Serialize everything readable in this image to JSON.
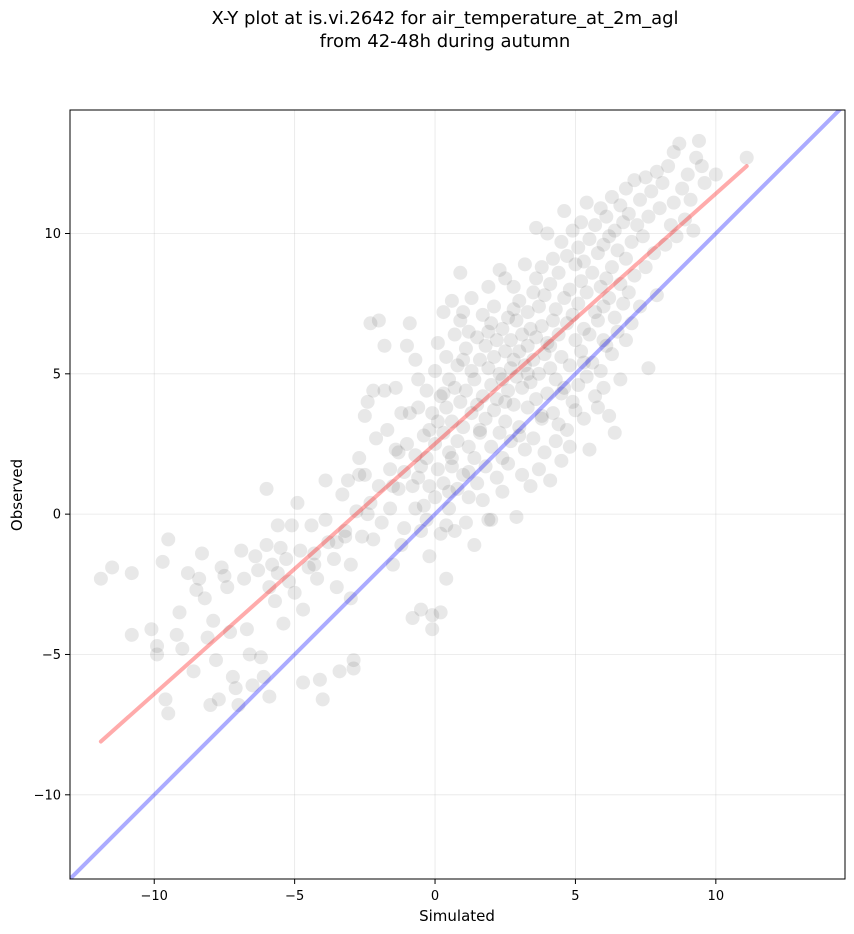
{
  "chart_data": {
    "type": "scatter",
    "title_lines": [
      "X-Y plot at is.vi.2642 for air_temperature_at_2m_agl",
      "from 42-48h during autumn"
    ],
    "xlabel": "Simulated",
    "ylabel": "Observed",
    "xlim": [
      -13.0,
      14.6
    ],
    "ylim": [
      -13.0,
      14.4
    ],
    "xticks": [
      -10,
      -5,
      0,
      5,
      10
    ],
    "yticks": [
      -10,
      -5,
      0,
      5,
      10
    ],
    "xtick_labels": [
      "−10",
      "−5",
      "0",
      "5",
      "10"
    ],
    "ytick_labels": [
      "−10",
      "−5",
      "0",
      "5",
      "10"
    ],
    "grid": true,
    "point_color": "#000000",
    "point_alpha": 0.09,
    "series": [
      {
        "label": "identity",
        "kind": "line",
        "color": "#0000ff",
        "alpha": 0.33,
        "x": [
          -13.0,
          14.6
        ],
        "y": [
          -13.0,
          14.6
        ]
      },
      {
        "label": "fit",
        "kind": "line",
        "color": "#ff0000",
        "alpha": 0.33,
        "x": [
          -11.9,
          11.1
        ],
        "y": [
          -8.1,
          12.4
        ]
      }
    ],
    "points": [
      [
        -11.9,
        -2.3
      ],
      [
        -11.5,
        -1.9
      ],
      [
        -10.8,
        -2.1
      ],
      [
        -10.8,
        -4.3
      ],
      [
        -10.1,
        -4.1
      ],
      [
        -9.9,
        -4.7
      ],
      [
        -9.9,
        -5.0
      ],
      [
        -9.7,
        -1.7
      ],
      [
        -9.5,
        -0.9
      ],
      [
        -9.6,
        -6.6
      ],
      [
        -9.5,
        -7.1
      ],
      [
        -9.2,
        -4.3
      ],
      [
        -9.1,
        -3.5
      ],
      [
        -9.0,
        -4.8
      ],
      [
        -8.8,
        -2.1
      ],
      [
        -8.6,
        -5.6
      ],
      [
        -8.5,
        -2.7
      ],
      [
        -8.4,
        -2.3
      ],
      [
        -8.3,
        -1.4
      ],
      [
        -8.2,
        -3.0
      ],
      [
        -8.1,
        -4.4
      ],
      [
        -8.0,
        -6.8
      ],
      [
        -7.9,
        -3.8
      ],
      [
        -7.8,
        -5.2
      ],
      [
        -7.7,
        -6.6
      ],
      [
        -7.6,
        -1.9
      ],
      [
        -7.5,
        -2.2
      ],
      [
        -7.4,
        -2.6
      ],
      [
        -7.3,
        -4.2
      ],
      [
        -7.2,
        -5.8
      ],
      [
        -7.1,
        -6.2
      ],
      [
        -7.0,
        -6.8
      ],
      [
        -6.9,
        -1.3
      ],
      [
        -6.8,
        -2.3
      ],
      [
        -6.7,
        -4.1
      ],
      [
        -6.6,
        -5.0
      ],
      [
        -6.5,
        -6.1
      ],
      [
        -6.4,
        -1.5
      ],
      [
        -6.3,
        -2.0
      ],
      [
        -6.2,
        -5.1
      ],
      [
        -6.1,
        -5.8
      ],
      [
        -6.0,
        0.9
      ],
      [
        -6.0,
        -1.1
      ],
      [
        -5.9,
        -2.6
      ],
      [
        -5.9,
        -6.5
      ],
      [
        -5.8,
        -1.8
      ],
      [
        -5.7,
        -3.1
      ],
      [
        -5.6,
        -0.4
      ],
      [
        -5.6,
        -2.1
      ],
      [
        -5.5,
        -1.2
      ],
      [
        -5.4,
        -3.9
      ],
      [
        -5.3,
        -1.6
      ],
      [
        -5.2,
        -2.4
      ],
      [
        -5.1,
        -0.4
      ],
      [
        -5.0,
        -2.8
      ],
      [
        -4.9,
        0.4
      ],
      [
        -4.8,
        -1.3
      ],
      [
        -4.7,
        -3.4
      ],
      [
        -4.7,
        -6.0
      ],
      [
        -4.5,
        -1.9
      ],
      [
        -4.4,
        -0.4
      ],
      [
        -4.3,
        -1.4
      ],
      [
        -4.2,
        -2.3
      ],
      [
        -4.1,
        -5.9
      ],
      [
        -4.0,
        -6.6
      ],
      [
        -3.9,
        -0.2
      ],
      [
        -3.8,
        -1.0
      ],
      [
        -3.6,
        -1.6
      ],
      [
        -3.5,
        -2.6
      ],
      [
        -3.4,
        -5.6
      ],
      [
        -3.3,
        0.7
      ],
      [
        -3.2,
        -0.6
      ],
      [
        -3.1,
        1.2
      ],
      [
        -3.0,
        -1.8
      ],
      [
        -3.0,
        -3.0
      ],
      [
        -2.9,
        -5.2
      ],
      [
        -2.9,
        -5.5
      ],
      [
        -2.8,
        0.1
      ],
      [
        -2.7,
        2.0
      ],
      [
        -2.6,
        -0.8
      ],
      [
        -2.5,
        3.5
      ],
      [
        -2.5,
        1.4
      ],
      [
        -2.4,
        4.0
      ],
      [
        -2.3,
        0.4
      ],
      [
        -2.3,
        6.8
      ],
      [
        -2.2,
        4.4
      ],
      [
        -2.1,
        2.7
      ],
      [
        -2.0,
        6.9
      ],
      [
        -2.0,
        1.0
      ],
      [
        -1.9,
        -0.3
      ],
      [
        -1.8,
        6.0
      ],
      [
        -1.8,
        4.4
      ],
      [
        -1.7,
        3.0
      ],
      [
        -1.6,
        1.6
      ],
      [
        -1.6,
        0.2
      ],
      [
        -1.5,
        -1.8
      ],
      [
        -1.4,
        4.5
      ],
      [
        -1.3,
        2.2
      ],
      [
        -1.3,
        0.9
      ],
      [
        -1.2,
        3.6
      ],
      [
        -1.1,
        1.5
      ],
      [
        -1.1,
        -0.5
      ],
      [
        -1.0,
        6.0
      ],
      [
        -1.0,
        2.5
      ],
      [
        -0.9,
        6.8
      ],
      [
        -0.9,
        3.6
      ],
      [
        -0.8,
        1.0
      ],
      [
        -0.8,
        -3.7
      ],
      [
        -0.7,
        5.5
      ],
      [
        -0.7,
        2.1
      ],
      [
        -0.6,
        4.8
      ],
      [
        -0.6,
        3.8
      ],
      [
        -0.5,
        1.7
      ],
      [
        -0.5,
        -0.6
      ],
      [
        -0.5,
        -3.4
      ],
      [
        -0.4,
        2.8
      ],
      [
        -0.4,
        0.3
      ],
      [
        -0.3,
        4.4
      ],
      [
        -0.3,
        2.0
      ],
      [
        -0.2,
        1.0
      ],
      [
        -0.2,
        -1.5
      ],
      [
        -0.1,
        3.6
      ],
      [
        -0.1,
        -3.6
      ],
      [
        -0.1,
        -4.1
      ],
      [
        0.0,
        5.1
      ],
      [
        0.0,
        2.5
      ],
      [
        0.0,
        0.6
      ],
      [
        0.1,
        6.1
      ],
      [
        0.1,
        3.3
      ],
      [
        0.1,
        1.6
      ],
      [
        0.2,
        4.2
      ],
      [
        0.2,
        -0.7
      ],
      [
        0.2,
        -3.5
      ],
      [
        0.3,
        7.2
      ],
      [
        0.3,
        2.9
      ],
      [
        0.3,
        1.1
      ],
      [
        0.4,
        5.6
      ],
      [
        0.4,
        3.8
      ],
      [
        0.4,
        -2.3
      ],
      [
        0.5,
        4.8
      ],
      [
        0.5,
        2.2
      ],
      [
        0.5,
        0.2
      ],
      [
        0.6,
        7.6
      ],
      [
        0.6,
        3.3
      ],
      [
        0.6,
        1.7
      ],
      [
        0.7,
        6.4
      ],
      [
        0.7,
        4.5
      ],
      [
        0.7,
        -0.6
      ],
      [
        0.8,
        5.3
      ],
      [
        0.8,
        2.6
      ],
      [
        0.8,
        0.9
      ],
      [
        0.9,
        8.6
      ],
      [
        0.9,
        6.9
      ],
      [
        0.9,
        4.0
      ],
      [
        1.0,
        7.2
      ],
      [
        1.0,
        3.1
      ],
      [
        1.0,
        1.4
      ],
      [
        1.1,
        5.9
      ],
      [
        1.1,
        4.4
      ],
      [
        1.1,
        -0.3
      ],
      [
        1.2,
        6.5
      ],
      [
        1.2,
        2.4
      ],
      [
        1.2,
        0.6
      ],
      [
        1.3,
        7.7
      ],
      [
        1.3,
        5.1
      ],
      [
        1.3,
        3.6
      ],
      [
        1.4,
        4.8
      ],
      [
        1.4,
        2.0
      ],
      [
        1.5,
        6.3
      ],
      [
        1.5,
        3.9
      ],
      [
        1.5,
        1.1
      ],
      [
        1.6,
        5.5
      ],
      [
        1.6,
        2.9
      ],
      [
        1.7,
        7.1
      ],
      [
        1.7,
        4.2
      ],
      [
        1.7,
        0.5
      ],
      [
        1.8,
        6.0
      ],
      [
        1.8,
        3.4
      ],
      [
        1.8,
        1.7
      ],
      [
        1.9,
        8.1
      ],
      [
        1.9,
        5.2
      ],
      [
        1.9,
        -0.2
      ],
      [
        2.0,
        6.8
      ],
      [
        2.0,
        4.6
      ],
      [
        2.0,
        2.4
      ],
      [
        2.1,
        7.4
      ],
      [
        2.1,
        5.6
      ],
      [
        2.1,
        3.7
      ],
      [
        2.2,
        6.2
      ],
      [
        2.2,
        4.1
      ],
      [
        2.2,
        1.3
      ],
      [
        2.3,
        8.7
      ],
      [
        2.3,
        5.0
      ],
      [
        2.3,
        2.9
      ],
      [
        2.4,
        6.6
      ],
      [
        2.4,
        4.8
      ],
      [
        2.4,
        0.8
      ],
      [
        2.5,
        8.4
      ],
      [
        2.5,
        5.8
      ],
      [
        2.5,
        3.3
      ],
      [
        2.6,
        7.0
      ],
      [
        2.6,
        4.4
      ],
      [
        2.6,
        1.8
      ],
      [
        2.7,
        6.2
      ],
      [
        2.7,
        5.2
      ],
      [
        2.7,
        2.6
      ],
      [
        2.8,
        8.1
      ],
      [
        2.8,
        5.5
      ],
      [
        2.8,
        3.9
      ],
      [
        2.9,
        6.9
      ],
      [
        2.9,
        4.9
      ],
      [
        2.9,
        -0.1
      ],
      [
        3.0,
        7.6
      ],
      [
        3.0,
        5.8
      ],
      [
        3.0,
        3.1
      ],
      [
        3.1,
        6.4
      ],
      [
        3.1,
        4.5
      ],
      [
        3.1,
        1.4
      ],
      [
        3.2,
        8.9
      ],
      [
        3.2,
        5.3
      ],
      [
        3.2,
        2.3
      ],
      [
        3.3,
        7.2
      ],
      [
        3.3,
        6.0
      ],
      [
        3.3,
        3.8
      ],
      [
        3.4,
        6.6
      ],
      [
        3.4,
        4.7
      ],
      [
        3.4,
        1.0
      ],
      [
        3.5,
        7.9
      ],
      [
        3.5,
        5.5
      ],
      [
        3.5,
        2.7
      ],
      [
        3.6,
        10.2
      ],
      [
        3.6,
        6.3
      ],
      [
        3.6,
        4.1
      ],
      [
        3.7,
        7.4
      ],
      [
        3.7,
        5.0
      ],
      [
        3.7,
        1.6
      ],
      [
        3.8,
        8.8
      ],
      [
        3.8,
        6.7
      ],
      [
        3.8,
        3.4
      ],
      [
        3.9,
        7.8
      ],
      [
        3.9,
        5.7
      ],
      [
        3.9,
        2.2
      ],
      [
        4.0,
        10.0
      ],
      [
        4.0,
        6.1
      ],
      [
        4.0,
        4.3
      ],
      [
        4.1,
        8.2
      ],
      [
        4.1,
        5.2
      ],
      [
        4.1,
        1.2
      ],
      [
        4.2,
        9.1
      ],
      [
        4.2,
        6.9
      ],
      [
        4.2,
        3.6
      ],
      [
        4.3,
        7.3
      ],
      [
        4.3,
        4.8
      ],
      [
        4.3,
        2.6
      ],
      [
        4.4,
        8.6
      ],
      [
        4.4,
        6.4
      ],
      [
        4.4,
        3.2
      ],
      [
        4.5,
        9.7
      ],
      [
        4.5,
        5.6
      ],
      [
        4.5,
        1.9
      ],
      [
        4.6,
        7.7
      ],
      [
        4.6,
        4.5
      ],
      [
        4.6,
        10.8
      ],
      [
        4.7,
        9.2
      ],
      [
        4.7,
        6.8
      ],
      [
        4.7,
        3.0
      ],
      [
        4.8,
        8.0
      ],
      [
        4.8,
        5.3
      ],
      [
        4.8,
        2.4
      ],
      [
        4.9,
        10.1
      ],
      [
        4.9,
        7.1
      ],
      [
        4.9,
        4.0
      ],
      [
        5.0,
        8.9
      ],
      [
        5.0,
        6.2
      ],
      [
        5.0,
        3.7
      ],
      [
        5.1,
        9.5
      ],
      [
        5.1,
        7.5
      ],
      [
        5.1,
        4.6
      ],
      [
        5.2,
        10.4
      ],
      [
        5.2,
        8.3
      ],
      [
        5.2,
        5.8
      ],
      [
        5.3,
        9.0
      ],
      [
        5.3,
        6.6
      ],
      [
        5.3,
        3.4
      ],
      [
        5.4,
        11.1
      ],
      [
        5.4,
        7.9
      ],
      [
        5.4,
        4.9
      ],
      [
        5.5,
        9.8
      ],
      [
        5.5,
        6.4
      ],
      [
        5.5,
        2.3
      ],
      [
        5.6,
        8.6
      ],
      [
        5.6,
        5.4
      ],
      [
        5.7,
        10.3
      ],
      [
        5.7,
        7.2
      ],
      [
        5.7,
        4.2
      ],
      [
        5.8,
        9.3
      ],
      [
        5.8,
        6.9
      ],
      [
        5.8,
        3.8
      ],
      [
        5.9,
        10.9
      ],
      [
        5.9,
        8.1
      ],
      [
        5.9,
        5.1
      ],
      [
        6.0,
        9.6
      ],
      [
        6.0,
        7.4
      ],
      [
        6.0,
        4.5
      ],
      [
        6.1,
        10.6
      ],
      [
        6.1,
        8.4
      ],
      [
        6.1,
        6.0
      ],
      [
        6.2,
        9.9
      ],
      [
        6.2,
        7.7
      ],
      [
        6.2,
        3.5
      ],
      [
        6.3,
        11.3
      ],
      [
        6.3,
        8.8
      ],
      [
        6.3,
        5.7
      ],
      [
        6.4,
        10.1
      ],
      [
        6.4,
        7.0
      ],
      [
        6.4,
        2.9
      ],
      [
        6.5,
        9.4
      ],
      [
        6.5,
        6.5
      ],
      [
        6.6,
        11.0
      ],
      [
        6.6,
        8.2
      ],
      [
        6.6,
        4.8
      ],
      [
        6.7,
        10.4
      ],
      [
        6.7,
        7.5
      ],
      [
        6.8,
        11.6
      ],
      [
        6.8,
        9.1
      ],
      [
        6.8,
        6.2
      ],
      [
        6.9,
        10.7
      ],
      [
        6.9,
        7.9
      ],
      [
        7.0,
        9.7
      ],
      [
        7.0,
        6.8
      ],
      [
        7.1,
        11.9
      ],
      [
        7.1,
        8.5
      ],
      [
        7.2,
        10.3
      ],
      [
        7.3,
        11.2
      ],
      [
        7.3,
        7.4
      ],
      [
        7.4,
        9.9
      ],
      [
        7.5,
        12.0
      ],
      [
        7.5,
        8.8
      ],
      [
        7.6,
        10.6
      ],
      [
        7.6,
        5.2
      ],
      [
        7.7,
        11.5
      ],
      [
        7.8,
        9.3
      ],
      [
        7.9,
        12.2
      ],
      [
        7.9,
        7.8
      ],
      [
        8.0,
        10.9
      ],
      [
        8.1,
        11.8
      ],
      [
        8.2,
        9.6
      ],
      [
        8.3,
        12.4
      ],
      [
        8.4,
        10.3
      ],
      [
        8.5,
        12.9
      ],
      [
        8.5,
        11.1
      ],
      [
        8.6,
        9.9
      ],
      [
        8.7,
        13.2
      ],
      [
        8.8,
        11.6
      ],
      [
        8.9,
        10.5
      ],
      [
        9.0,
        12.1
      ],
      [
        9.1,
        11.2
      ],
      [
        9.2,
        10.1
      ],
      [
        9.3,
        12.7
      ],
      [
        9.4,
        13.3
      ],
      [
        9.5,
        12.4
      ],
      [
        9.6,
        11.8
      ],
      [
        10.0,
        12.1
      ],
      [
        11.1,
        12.7
      ],
      [
        -0.7,
        0.2
      ],
      [
        -1.2,
        -1.1
      ],
      [
        0.4,
        -0.4
      ],
      [
        1.4,
        -1.1
      ],
      [
        2.0,
        -0.2
      ],
      [
        -2.2,
        -0.9
      ],
      [
        -3.5,
        -1.0
      ],
      [
        -3.9,
        1.2
      ],
      [
        -2.7,
        1.4
      ],
      [
        -1.4,
        2.3
      ],
      [
        -0.6,
        1.3
      ],
      [
        0.6,
        2.0
      ],
      [
        1.6,
        3.0
      ],
      [
        2.5,
        4.0
      ],
      [
        3.3,
        5.0
      ],
      [
        4.1,
        6.0
      ],
      [
        1.0,
        5.5
      ],
      [
        1.9,
        6.5
      ],
      [
        2.8,
        7.3
      ],
      [
        3.6,
        8.4
      ],
      [
        0.3,
        4.3
      ],
      [
        -0.2,
        3.0
      ],
      [
        -1.5,
        1.0
      ],
      [
        -2.4,
        0.0
      ],
      [
        -3.2,
        -0.8
      ],
      [
        -4.3,
        -1.8
      ],
      [
        2.4,
        2.0
      ],
      [
        3.0,
        2.8
      ],
      [
        3.8,
        3.5
      ],
      [
        4.5,
        4.3
      ],
      [
        5.3,
        5.4
      ],
      [
        6.0,
        6.2
      ],
      [
        1.2,
        1.5
      ],
      [
        0.5,
        0.8
      ],
      [
        -0.3,
        -0.2
      ]
    ]
  }
}
